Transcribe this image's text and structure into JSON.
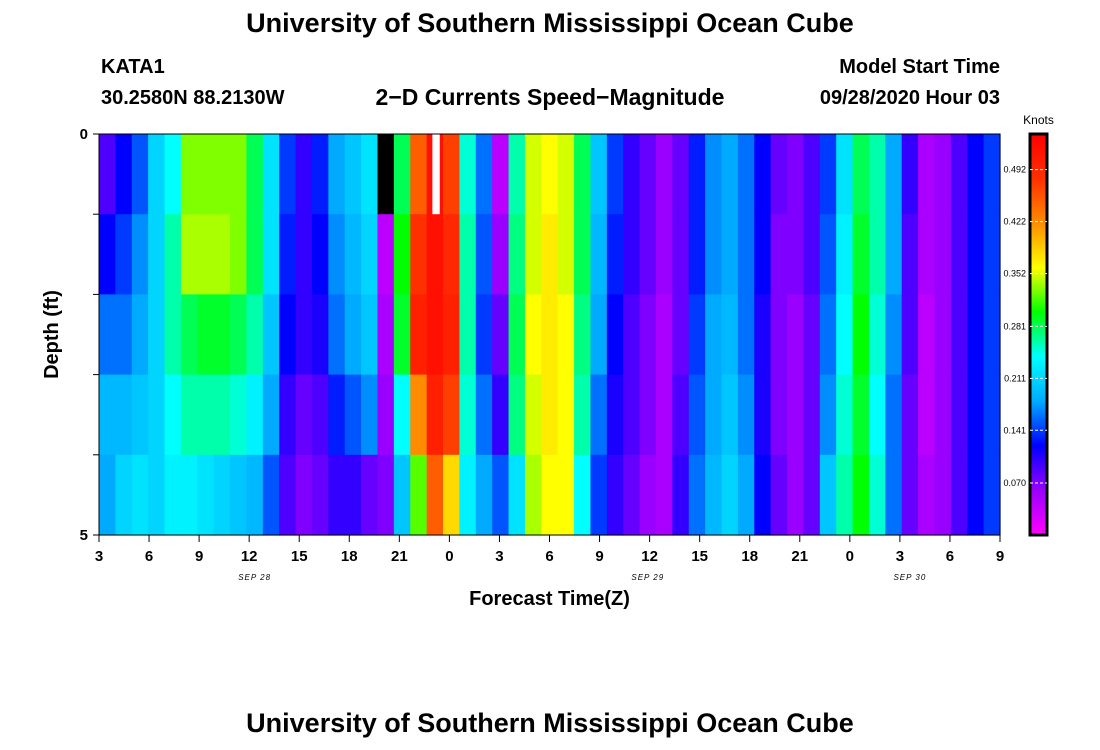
{
  "header": {
    "title": "University of Southern Mississippi Ocean Cube",
    "station": "KATA1",
    "coordinates": "30.2580N 88.2130W",
    "subtitle": "2−D Currents Speed−Magnitude",
    "model_start_label": "Model Start Time",
    "model_start_value": "09/28/2020 Hour 03"
  },
  "footer": {
    "title": "University of Southern Mississippi Ocean Cube"
  },
  "chart_data": {
    "type": "heatmap",
    "title": "2−D Currents Speed−Magnitude",
    "xlabel": "Forecast Time(Z)",
    "ylabel": "Depth (ft)",
    "x_tick_labels": [
      "3",
      "6",
      "9",
      "12",
      "15",
      "18",
      "21",
      "0",
      "3",
      "6",
      "9",
      "12",
      "15",
      "18",
      "21",
      "0",
      "3",
      "6",
      "9"
    ],
    "date_labels": [
      {
        "label": "SEP 28",
        "hour_index": 9
      },
      {
        "label": "SEP 29",
        "hour_index": 33
      },
      {
        "label": "SEP 30",
        "hour_index": 49
      }
    ],
    "y_tick_labels": [
      {
        "label": "0",
        "depth": 0
      },
      {
        "label": "5",
        "depth": 5
      }
    ],
    "depth_range": [
      0,
      5
    ],
    "depth_levels": 5,
    "hours": 55,
    "colorbar": {
      "unit_label": "Knots",
      "tick_labels": [
        "0.492",
        "0.422",
        "0.352",
        "0.281",
        "0.211",
        "0.141",
        "0.070"
      ],
      "ticks": [
        0.492,
        0.422,
        0.352,
        0.281,
        0.211,
        0.141,
        0.07
      ],
      "range": [
        0.0,
        0.54
      ],
      "colors": [
        "#ff00ff",
        "#9900ff",
        "#0000ff",
        "#00aaff",
        "#00ffff",
        "#00ff00",
        "#ffff00",
        "#ff8c00",
        "#ff3000",
        "#ff0000"
      ]
    },
    "missing_color": "#ffffff",
    "outlier_color": "#000000",
    "speed_columns": [
      [
        0.09,
        0.12,
        0.16,
        0.19,
        0.18
      ],
      [
        0.12,
        0.14,
        0.16,
        0.19,
        0.21
      ],
      [
        0.15,
        0.17,
        0.18,
        0.2,
        0.22
      ],
      [
        0.21,
        0.21,
        0.21,
        0.21,
        0.21
      ],
      [
        0.24,
        0.26,
        0.26,
        0.24,
        0.23
      ],
      [
        0.33,
        0.34,
        0.28,
        0.26,
        0.23
      ],
      [
        0.33,
        0.34,
        0.29,
        0.26,
        0.22
      ],
      [
        0.33,
        0.34,
        0.29,
        0.26,
        0.21
      ],
      [
        0.33,
        0.33,
        0.28,
        0.25,
        0.2
      ],
      [
        0.28,
        0.28,
        0.26,
        0.23,
        0.19
      ],
      [
        0.22,
        0.22,
        0.2,
        0.18,
        0.15
      ],
      [
        0.14,
        0.13,
        0.12,
        0.1,
        0.09
      ],
      [
        0.1,
        0.1,
        0.1,
        0.08,
        0.07
      ],
      [
        0.13,
        0.12,
        0.11,
        0.09,
        0.08
      ],
      [
        0.18,
        0.17,
        0.16,
        0.13,
        0.1
      ],
      [
        0.2,
        0.19,
        0.18,
        0.15,
        0.1
      ],
      [
        0.22,
        0.21,
        0.2,
        0.17,
        0.08
      ],
      [
        -1,
        0.04,
        0.05,
        0.06,
        0.07
      ],
      [
        0.28,
        0.3,
        0.29,
        0.24,
        0.2
      ],
      [
        0.45,
        0.48,
        0.5,
        0.42,
        0.32
      ],
      [
        -2,
        0.52,
        0.52,
        0.5,
        0.45
      ],
      [
        0.47,
        0.49,
        0.5,
        0.47,
        0.38
      ],
      [
        0.25,
        0.26,
        0.26,
        0.25,
        0.23
      ],
      [
        0.16,
        0.15,
        0.14,
        0.16,
        0.18
      ],
      [
        0.04,
        0.06,
        0.08,
        0.1,
        0.15
      ],
      [
        0.26,
        0.27,
        0.28,
        0.27,
        0.22
      ],
      [
        0.35,
        0.35,
        0.36,
        0.35,
        0.34
      ],
      [
        0.36,
        0.37,
        0.37,
        0.37,
        0.36
      ],
      [
        0.35,
        0.35,
        0.36,
        0.36,
        0.36
      ],
      [
        0.28,
        0.28,
        0.27,
        0.26,
        0.24
      ],
      [
        0.2,
        0.19,
        0.18,
        0.16,
        0.14
      ],
      [
        0.14,
        0.13,
        0.12,
        0.11,
        0.1
      ],
      [
        0.1,
        0.1,
        0.09,
        0.09,
        0.08
      ],
      [
        0.08,
        0.08,
        0.07,
        0.07,
        0.06
      ],
      [
        0.06,
        0.06,
        0.05,
        0.05,
        0.05
      ],
      [
        0.08,
        0.08,
        0.08,
        0.09,
        0.1
      ],
      [
        0.13,
        0.13,
        0.14,
        0.15,
        0.16
      ],
      [
        0.17,
        0.17,
        0.18,
        0.18,
        0.19
      ],
      [
        0.18,
        0.18,
        0.19,
        0.2,
        0.21
      ],
      [
        0.16,
        0.16,
        0.16,
        0.17,
        0.18
      ],
      [
        0.12,
        0.12,
        0.11,
        0.11,
        0.12
      ],
      [
        0.08,
        0.07,
        0.07,
        0.07,
        0.08
      ],
      [
        0.07,
        0.07,
        0.06,
        0.06,
        0.06
      ],
      [
        0.09,
        0.09,
        0.08,
        0.08,
        0.08
      ],
      [
        0.14,
        0.15,
        0.16,
        0.17,
        0.2
      ],
      [
        0.22,
        0.23,
        0.24,
        0.25,
        0.26
      ],
      [
        0.28,
        0.29,
        0.3,
        0.29,
        0.3
      ],
      [
        0.26,
        0.26,
        0.25,
        0.24,
        0.25
      ],
      [
        0.18,
        0.18,
        0.17,
        0.16,
        0.16
      ],
      [
        0.1,
        0.09,
        0.09,
        0.08,
        0.08
      ],
      [
        0.05,
        0.05,
        0.04,
        0.04,
        0.05
      ],
      [
        0.06,
        0.06,
        0.06,
        0.06,
        0.06
      ],
      [
        0.09,
        0.09,
        0.09,
        0.09,
        0.09
      ],
      [
        0.12,
        0.12,
        0.12,
        0.12,
        0.12
      ],
      [
        0.14,
        0.14,
        0.14,
        0.14,
        0.14
      ]
    ]
  }
}
